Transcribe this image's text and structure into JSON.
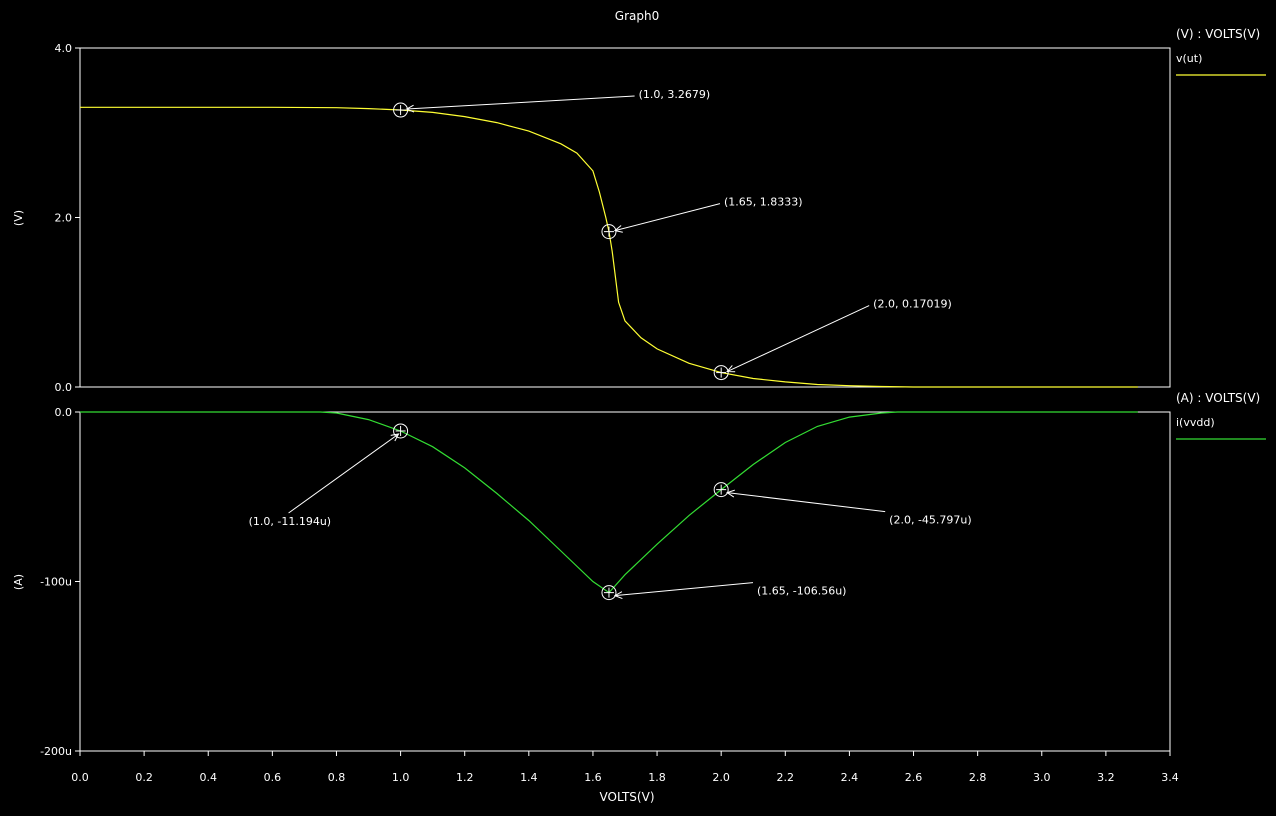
{
  "title": "Graph0",
  "xlabel": "VOLTS(V)",
  "colors": {
    "background": "#000000",
    "axes": "#ffffff",
    "vout": "#ffff33",
    "ivdd": "#33dd33"
  },
  "chart_data": [
    {
      "type": "line",
      "xlabel": "VOLTS(V)",
      "ylabel": "(V)",
      "xlim": [
        0.0,
        3.4
      ],
      "ylim": [
        0.0,
        4.0
      ],
      "x_ticks": [
        "0.0",
        "0.2",
        "0.4",
        "0.6",
        "0.8",
        "1.0",
        "1.2",
        "1.4",
        "1.6",
        "1.8",
        "2.0",
        "2.2",
        "2.4",
        "2.6",
        "2.8",
        "3.0",
        "3.2",
        "3.4"
      ],
      "y_ticks": [
        {
          "value": 0.0,
          "label": "0.0"
        },
        {
          "value": 2.0,
          "label": "2.0"
        },
        {
          "value": 4.0,
          "label": "4.0"
        }
      ],
      "legend": {
        "header": "(V) : VOLTS(V)",
        "placement": "right"
      },
      "series": [
        {
          "name": "v(ut)",
          "color": "#ffff33",
          "x": [
            0.0,
            0.2,
            0.4,
            0.6,
            0.8,
            0.9,
            1.0,
            1.1,
            1.2,
            1.3,
            1.4,
            1.5,
            1.55,
            1.6,
            1.62,
            1.64,
            1.65,
            1.66,
            1.68,
            1.7,
            1.75,
            1.8,
            1.9,
            2.0,
            2.1,
            2.2,
            2.3,
            2.4,
            2.5,
            2.6,
            2.8,
            3.0,
            3.2,
            3.3
          ],
          "y": [
            3.3,
            3.3,
            3.3,
            3.3,
            3.295,
            3.285,
            3.2679,
            3.24,
            3.19,
            3.12,
            3.02,
            2.87,
            2.76,
            2.55,
            2.3,
            2.0,
            1.8333,
            1.6,
            1.0,
            0.78,
            0.58,
            0.45,
            0.28,
            0.17019,
            0.1,
            0.06,
            0.03,
            0.015,
            0.006,
            0.0,
            0.0,
            0.0,
            0.0,
            0.0
          ]
        }
      ],
      "annotations": [
        {
          "x": 1.0,
          "y": 3.2679,
          "label": "(1.0, 3.2679)"
        },
        {
          "x": 1.65,
          "y": 1.8333,
          "label": "(1.65, 1.8333)"
        },
        {
          "x": 2.0,
          "y": 0.17019,
          "label": "(2.0, 0.17019)"
        }
      ]
    },
    {
      "type": "line",
      "xlabel": "VOLTS(V)",
      "ylabel": "(A)",
      "xlim": [
        0.0,
        3.4
      ],
      "ylim": [
        -200,
        0
      ],
      "y_unit": "u",
      "x_ticks": [
        "0.0",
        "0.2",
        "0.4",
        "0.6",
        "0.8",
        "1.0",
        "1.2",
        "1.4",
        "1.6",
        "1.8",
        "2.0",
        "2.2",
        "2.4",
        "2.6",
        "2.8",
        "3.0",
        "3.2",
        "3.4"
      ],
      "y_ticks": [
        {
          "value": 0,
          "label": "0.0"
        },
        {
          "value": -100,
          "label": "-100u"
        },
        {
          "value": -200,
          "label": "-200u"
        }
      ],
      "legend": {
        "header": "(A) : VOLTS(V)",
        "placement": "right"
      },
      "series": [
        {
          "name": "i(vvdd)",
          "color": "#33dd33",
          "x": [
            0.0,
            0.2,
            0.4,
            0.6,
            0.75,
            0.8,
            0.9,
            1.0,
            1.1,
            1.2,
            1.3,
            1.4,
            1.5,
            1.6,
            1.65,
            1.7,
            1.8,
            1.9,
            2.0,
            2.1,
            2.2,
            2.3,
            2.4,
            2.5,
            2.55,
            2.6,
            2.8,
            3.0,
            3.2,
            3.3
          ],
          "y": [
            0,
            0,
            0,
            0,
            0,
            -0.6,
            -4.5,
            -11.194,
            -20.5,
            -33,
            -48,
            -64,
            -82,
            -100,
            -106.56,
            -96,
            -78,
            -61,
            -45.797,
            -31,
            -18,
            -8.5,
            -3,
            -0.6,
            0,
            0,
            0,
            0,
            0,
            0
          ]
        }
      ],
      "annotations": [
        {
          "x": 1.0,
          "y": -11.194,
          "label": "(1.0, -11.194u)"
        },
        {
          "x": 1.65,
          "y": -106.56,
          "label": "(1.65, -106.56u)"
        },
        {
          "x": 2.0,
          "y": -45.797,
          "label": "(2.0, -45.797u)"
        }
      ]
    }
  ]
}
